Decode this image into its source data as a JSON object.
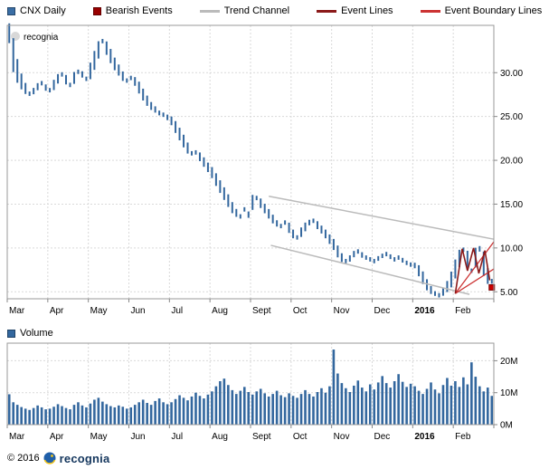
{
  "legend": {
    "items": [
      {
        "label": "CNX Daily",
        "swatch": "square",
        "color": "#3a6ea5"
      },
      {
        "label": "Bearish Events",
        "swatch": "square",
        "color": "#990000"
      },
      {
        "label": "Trend Channel",
        "swatch": "line",
        "color": "#bbbbbb"
      },
      {
        "label": "Event Lines",
        "swatch": "line",
        "color": "#8b1a1a"
      },
      {
        "label": "Event Boundary Lines",
        "swatch": "line",
        "color": "#cc3333"
      }
    ]
  },
  "watermark": {
    "text": "recognia"
  },
  "footer": {
    "copyright": "© 2016",
    "brand": "recognia"
  },
  "chart_data": [
    {
      "type": "candlestick",
      "title": "CNX Daily",
      "x_labels": [
        "Mar",
        "Apr",
        "May",
        "Jun",
        "Jul",
        "Aug",
        "Sept",
        "Oct",
        "Nov",
        "Dec",
        "2016",
        "Feb"
      ],
      "bold_x_label": "2016",
      "ylim": [
        4.2,
        35.4
      ],
      "yticks": [
        5,
        10,
        15,
        20,
        25,
        30
      ],
      "bar_color": "#33679e",
      "values": [
        34.5,
        32.0,
        30.2,
        29.0,
        28.2,
        27.6,
        27.9,
        28.4,
        28.8,
        28.3,
        28.0,
        28.6,
        29.3,
        29.8,
        29.2,
        28.6,
        29.4,
        30.1,
        29.8,
        29.3,
        30.2,
        31.4,
        32.6,
        33.6,
        32.8,
        31.9,
        31.0,
        30.3,
        29.6,
        29.1,
        29.4,
        29.0,
        28.3,
        27.5,
        26.8,
        26.2,
        25.8,
        25.4,
        25.2,
        24.9,
        24.5,
        23.8,
        23.0,
        22.2,
        21.4,
        20.8,
        20.9,
        20.4,
        19.8,
        19.2,
        18.6,
        17.8,
        17.0,
        16.2,
        15.4,
        14.6,
        14.0,
        13.6,
        14.4,
        13.8,
        15.2,
        15.7,
        15.1,
        14.5,
        13.9,
        13.3,
        12.8,
        12.5,
        12.9,
        12.3,
        11.6,
        11.2,
        11.8,
        12.4,
        12.9,
        13.1,
        12.6,
        12.1,
        11.6,
        11.0,
        10.4,
        9.6,
        8.9,
        8.5,
        8.8,
        9.3,
        9.6,
        9.2,
        8.9,
        8.7,
        8.5,
        8.8,
        9.1,
        9.3,
        9.0,
        8.7,
        8.9,
        8.6,
        8.3,
        8.1,
        8.0,
        7.4,
        6.6,
        5.8,
        5.2,
        4.8,
        4.6,
        5.0,
        5.6,
        6.4,
        7.6,
        8.8,
        9.8,
        8.6,
        7.4,
        8.9,
        9.9,
        8.2,
        6.8,
        6.2
      ],
      "trend_channel": {
        "color": "#bbbbbb",
        "lines": [
          [
            [
              6.45,
              15.9
            ],
            [
              12.0,
              11.0
            ]
          ],
          [
            [
              6.5,
              10.3
            ],
            [
              11.4,
              4.7
            ]
          ]
        ]
      },
      "event_lines": {
        "color": "#8b1a1a",
        "points": [
          [
            11.05,
            4.8
          ],
          [
            11.22,
            9.9
          ],
          [
            11.35,
            7.4
          ],
          [
            11.5,
            10.0
          ],
          [
            11.63,
            7.1
          ],
          [
            11.78,
            9.7
          ],
          [
            11.9,
            6.3
          ]
        ]
      },
      "event_boundary_lines": {
        "color": "#cc3333",
        "lines": [
          [
            [
              11.05,
              4.8
            ],
            [
              12.0,
              10.7
            ]
          ],
          [
            [
              11.05,
              4.8
            ],
            [
              12.0,
              7.6
            ]
          ]
        ]
      },
      "bearish_marker": {
        "x": 11.95,
        "y": 5.5,
        "color": "#cc0000"
      }
    },
    {
      "type": "bar",
      "title": "Volume",
      "x_labels": [
        "Mar",
        "Apr",
        "May",
        "Jun",
        "Jul",
        "Aug",
        "Sept",
        "Oct",
        "Nov",
        "Dec",
        "2016",
        "Feb"
      ],
      "bold_x_label": "2016",
      "ylim": [
        0,
        25.5
      ],
      "yticks": [
        0,
        10,
        20
      ],
      "ytick_suffix": "M",
      "bar_color": "#33679e",
      "values": [
        9.5,
        7.0,
        6.2,
        5.5,
        5.0,
        4.6,
        5.2,
        6.0,
        5.4,
        4.8,
        5.0,
        5.6,
        6.4,
        5.8,
        5.2,
        4.8,
        6.2,
        7.0,
        6.0,
        5.4,
        6.6,
        7.8,
        8.4,
        7.2,
        6.4,
        5.8,
        5.4,
        6.0,
        5.6,
        5.0,
        5.4,
        6.2,
        7.0,
        7.8,
        6.8,
        6.2,
        7.4,
        8.2,
        7.0,
        6.4,
        7.0,
        8.0,
        9.2,
        8.4,
        7.6,
        8.8,
        10.0,
        9.0,
        8.2,
        9.4,
        10.4,
        12.0,
        13.6,
        14.4,
        12.4,
        10.8,
        9.6,
        10.6,
        11.8,
        10.2,
        9.4,
        10.4,
        11.2,
        9.8,
        8.8,
        9.6,
        10.6,
        9.2,
        8.6,
        9.8,
        9.0,
        8.4,
        9.6,
        10.8,
        9.6,
        8.8,
        10.2,
        11.4,
        10.0,
        12.0,
        23.5,
        16.0,
        13.0,
        11.4,
        10.2,
        12.2,
        13.8,
        11.6,
        10.4,
        12.6,
        11.0,
        13.2,
        15.2,
        13.0,
        11.6,
        13.6,
        15.8,
        13.4,
        11.8,
        12.8,
        12.0,
        10.6,
        9.6,
        11.2,
        13.2,
        11.0,
        9.8,
        12.4,
        14.6,
        12.2,
        13.6,
        11.8,
        14.8,
        12.6,
        19.5,
        15.0,
        12.0,
        10.4,
        11.6,
        9.0
      ]
    }
  ]
}
